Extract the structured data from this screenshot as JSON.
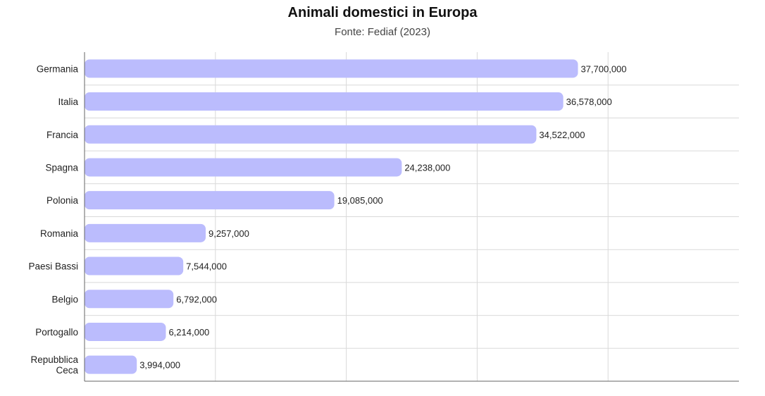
{
  "chart_data": {
    "type": "bar",
    "orientation": "horizontal",
    "title": "Animali domestici in Europa",
    "subtitle": "Fonte: Fediaf (2023)",
    "xlabel": "",
    "ylabel": "",
    "categories": [
      "Germania",
      "Italia",
      "Francia",
      "Spagna",
      "Polonia",
      "Romania",
      "Paesi Bassi",
      "Belgio",
      "Portogallo",
      "Repubblica Ceca"
    ],
    "category_lines": [
      [
        "Germania"
      ],
      [
        "Italia"
      ],
      [
        "Francia"
      ],
      [
        "Spagna"
      ],
      [
        "Polonia"
      ],
      [
        "Romania"
      ],
      [
        "Paesi Bassi"
      ],
      [
        "Belgio"
      ],
      [
        "Portogallo"
      ],
      [
        "Repubblica",
        "Ceca"
      ]
    ],
    "values": [
      37700000,
      36578000,
      34522000,
      24238000,
      19085000,
      9257000,
      7544000,
      6792000,
      6214000,
      3994000
    ],
    "value_labels": [
      "37,700,000",
      "36,578,000",
      "34,522,000",
      "24,238,000",
      "19,085,000",
      "9,257,000",
      "7,544,000",
      "6,792,000",
      "6,214,000",
      "3,994,000"
    ],
    "xlim": [
      0,
      50000000
    ],
    "vertical_gridlines_at": [
      10000000,
      20000000,
      30000000,
      40000000
    ],
    "x_tick_labels_shown": false,
    "grid": true,
    "legend": "none",
    "colors": {
      "bar": "#bbbcfd",
      "grid": "#d9d9d9",
      "axis": "#666666",
      "text": "#222222"
    }
  }
}
